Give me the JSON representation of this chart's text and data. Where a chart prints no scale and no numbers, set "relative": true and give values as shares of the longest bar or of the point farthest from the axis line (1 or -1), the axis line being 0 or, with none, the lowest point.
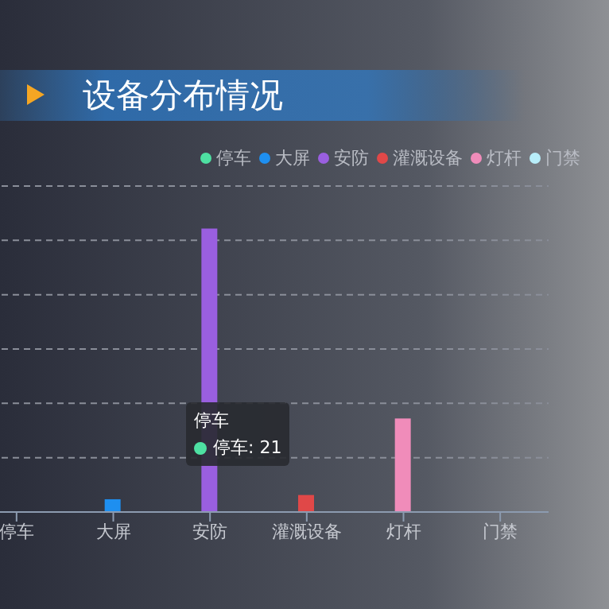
{
  "chart_data": {
    "type": "bar",
    "title": "设备分布情况",
    "relative": true,
    "stacked": true,
    "grid": "y",
    "legend": "top right",
    "categories": [
      "停车",
      "大屏",
      "安防",
      "灌溉设备",
      "灯杆",
      "门禁"
    ],
    "series": [
      {
        "name": "停车",
        "color": "#4ee0a2",
        "values": [
          null,
          null,
          null,
          null,
          null,
          null
        ]
      },
      {
        "name": "大屏",
        "color": "#1e8ff0",
        "values": [
          null,
          0.045,
          null,
          null,
          null,
          null
        ]
      },
      {
        "name": "安防",
        "color": "#9a5fe0",
        "values": [
          null,
          null,
          1,
          null,
          null,
          null
        ]
      },
      {
        "name": "灌溉设备",
        "color": "#e04848",
        "values": [
          null,
          null,
          null,
          0.06,
          null,
          null
        ]
      },
      {
        "name": "灯杆",
        "color": "#f08cba",
        "values": [
          null,
          null,
          null,
          null,
          0.33,
          null
        ]
      },
      {
        "name": "门禁",
        "color": "#b8eefa",
        "values": [
          null,
          null,
          null,
          null,
          null,
          null
        ]
      }
    ],
    "annotations": [
      "停车",
      "停车: 21"
    ]
  }
}
